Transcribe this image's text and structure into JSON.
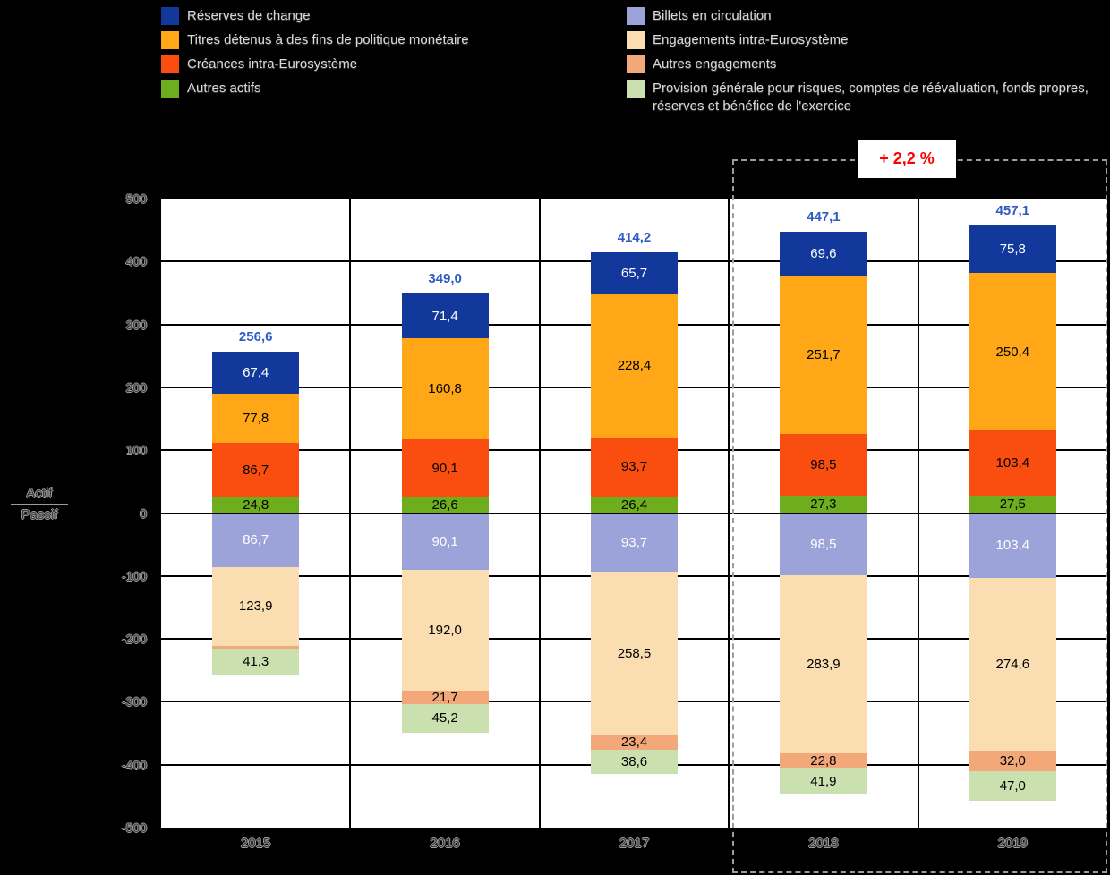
{
  "legend": {
    "left": [
      {
        "label": "Réserves de change",
        "color": "#12389B"
      },
      {
        "label": "Titres détenus à des fins de politique monétaire",
        "color": "#FFA717"
      },
      {
        "label": "Créances intra-Eurosystème",
        "color": "#FA4E11"
      },
      {
        "label": "Autres actifs",
        "color": "#6EAD1E"
      }
    ],
    "right": [
      {
        "label": "Billets en circulation",
        "color": "#9CA3D8"
      },
      {
        "label": "Engagements intra-Eurosystème",
        "color": "#FBDDB2"
      },
      {
        "label": "Autres engagements",
        "color": "#F2A878"
      },
      {
        "label": "Provision générale pour risques, comptes de réévaluation, fonds propres, réserves et bénéfice de l'exercice",
        "color": "#CBE0AF"
      }
    ]
  },
  "annotation": {
    "text": "+ 2,2 %",
    "color": "#FF0000"
  },
  "chart_data": {
    "type": "bar",
    "stacked": true,
    "orientation": "diverging-vertical",
    "categories": [
      "2015",
      "2016",
      "2017",
      "2018",
      "2019"
    ],
    "ylim": [
      -500,
      500
    ],
    "yticks": [
      "500",
      "400",
      "300",
      "200",
      "100",
      "0",
      "-100",
      "-200",
      "-300",
      "-400",
      "-500"
    ],
    "ylabel_top": "Actif",
    "ylabel_bottom": "Passif",
    "grid": true,
    "highlight_years": [
      "2018",
      "2019"
    ],
    "totals": {
      "color": "#2E5BC4",
      "labels": [
        "256,6",
        "349,0",
        "414,2",
        "447,1",
        "457,1"
      ],
      "values": [
        256.6,
        349.0,
        414.2,
        447.1,
        457.1
      ]
    },
    "actif_series": [
      {
        "name": "Réserves de change",
        "color": "#12389B",
        "text_color": "#FFFFFF",
        "values": [
          67.4,
          71.4,
          65.7,
          69.6,
          75.8
        ],
        "labels": [
          "67,4",
          "71,4",
          "65,7",
          "69,6",
          "75,8"
        ]
      },
      {
        "name": "Titres détenus à des fins de politique monétaire",
        "color": "#FFA717",
        "text_color": "#000000",
        "values": [
          77.8,
          160.8,
          228.4,
          251.7,
          250.4
        ],
        "labels": [
          "77,8",
          "160,8",
          "228,4",
          "251,7",
          "250,4"
        ]
      },
      {
        "name": "Créances intra-Eurosystème",
        "color": "#FA4E11",
        "text_color": "#000000",
        "values": [
          86.7,
          90.1,
          93.7,
          98.5,
          103.4
        ],
        "labels": [
          "86,7",
          "90,1",
          "93,7",
          "98,5",
          "103,4"
        ]
      },
      {
        "name": "Autres actifs",
        "color": "#6EAD1E",
        "text_color": "#000000",
        "values": [
          24.8,
          26.6,
          26.4,
          27.3,
          27.5
        ],
        "labels": [
          "24,8",
          "26,6",
          "26,4",
          "27,3",
          "27,5"
        ]
      }
    ],
    "passif_series": [
      {
        "name": "Billets en circulation",
        "color": "#9CA3D8",
        "text_color": "#FFFFFF",
        "values": [
          86.7,
          90.1,
          93.7,
          98.5,
          103.4
        ],
        "labels": [
          "86,7",
          "90,1",
          "93,7",
          "98,5",
          "103,4"
        ]
      },
      {
        "name": "Engagements intra-Eurosystème",
        "color": "#FBDDB2",
        "text_color": "#000000",
        "values": [
          123.9,
          192.0,
          258.5,
          283.9,
          274.6
        ],
        "labels": [
          "123,9",
          "192,0",
          "258,5",
          "283,9",
          "274,6"
        ]
      },
      {
        "name": "Autres engagements",
        "color": "#F2A878",
        "text_color": "#000000",
        "values": [
          4.7,
          21.7,
          23.4,
          22.8,
          32.0
        ],
        "labels": [
          "",
          "21,7",
          "23,4",
          "22,8",
          "32,0"
        ]
      },
      {
        "name": "Provision générale pour risques, comptes de réévaluation, fonds propres, réserves et bénéfice de l'exercice",
        "color": "#CBE0AF",
        "text_color": "#000000",
        "values": [
          41.3,
          45.2,
          38.6,
          41.9,
          47.0
        ],
        "labels": [
          "41,3",
          "45,2",
          "38,6",
          "41,9",
          "47,0"
        ]
      }
    ]
  }
}
